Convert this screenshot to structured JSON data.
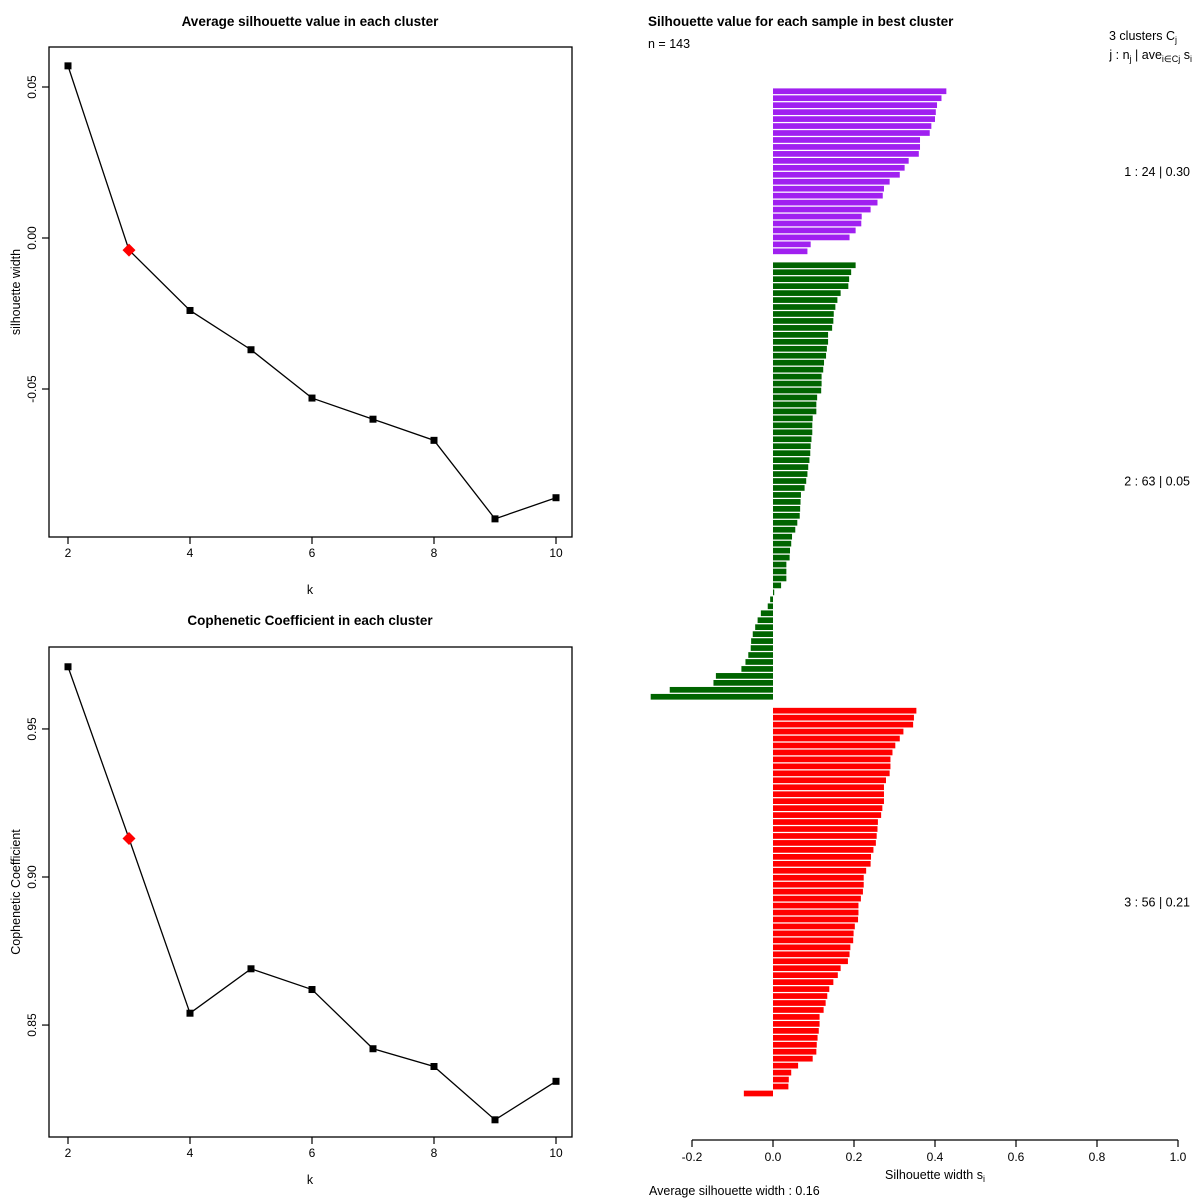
{
  "figure": {
    "background": "#ffffff",
    "series_color": "#000000",
    "marker_color": "#000000",
    "highlight_color": "#FF0000"
  },
  "chart_data": [
    {
      "type": "line",
      "title": "Average silhouette value in each cluster",
      "xlabel": "k",
      "ylabel": "silhouette width",
      "x": [
        2,
        3,
        4,
        5,
        6,
        7,
        8,
        9,
        10
      ],
      "y": [
        0.057,
        -0.004,
        -0.024,
        -0.037,
        -0.053,
        -0.06,
        -0.067,
        -0.093,
        -0.086
      ],
      "xticks": [
        2,
        4,
        6,
        8,
        10
      ],
      "yticks": [
        0.05,
        0.0,
        -0.05
      ],
      "ytick_labels": [
        "0.05",
        "0.00",
        "-0.05"
      ],
      "xlim": [
        1.7,
        10.3
      ],
      "ylim": [
        -0.097,
        0.062
      ],
      "grid": false,
      "highlight": {
        "x": 3,
        "y": -0.004,
        "marker": "diamond",
        "color": "#FF0000"
      }
    },
    {
      "type": "line",
      "title": "Cophenetic Coefficient in each cluster",
      "xlabel": "k",
      "ylabel": "Cophenetic Coefficient",
      "x": [
        2,
        3,
        4,
        5,
        6,
        7,
        8,
        9,
        10
      ],
      "y": [
        0.971,
        0.913,
        0.854,
        0.869,
        0.862,
        0.842,
        0.836,
        0.818,
        0.831
      ],
      "xticks": [
        2,
        4,
        6,
        8,
        10
      ],
      "yticks": [
        0.95,
        0.9,
        0.85
      ],
      "ytick_labels": [
        "0.95",
        "0.90",
        "0.85"
      ],
      "xlim": [
        1.7,
        10.3
      ],
      "ylim": [
        0.812,
        0.976
      ],
      "grid": false,
      "highlight": {
        "x": 3,
        "y": 0.913,
        "marker": "diamond",
        "color": "#FF0000"
      }
    },
    {
      "type": "bar",
      "orientation": "horizontal",
      "title": "Silhouette value for each sample in best cluster",
      "subtitle": "n = 143",
      "anno1": {
        "p1": "3  clusters  C",
        "s1": "j"
      },
      "anno2": {
        "p1": "j :  n",
        "s1": "j",
        "p2": " | ave",
        "s2": "i∈Cj",
        "p3": "  s",
        "s3": "i"
      },
      "xlabel_parts": {
        "main": "Silhouette width s",
        "sub": "i"
      },
      "footer": "Average silhouette width :  0.16",
      "n_total": 143,
      "average_silhouette_width": 0.16,
      "xticks": [
        -0.2,
        0.0,
        0.2,
        0.4,
        0.6,
        0.8,
        1.0
      ],
      "xtick_labels": [
        "-0.2",
        "0.0",
        "0.2",
        "0.4",
        "0.6",
        "0.8",
        "1.0"
      ],
      "xlim": [
        -0.32,
        1.0
      ],
      "clusters": [
        {
          "j": 1,
          "n": 24,
          "avg_width": 0.3,
          "label": "1 :  24  |  0.30",
          "color": "#A020F0",
          "values": [
            0.428,
            0.416,
            0.405,
            0.402,
            0.4,
            0.391,
            0.387,
            0.363,
            0.363,
            0.36,
            0.335,
            0.325,
            0.313,
            0.288,
            0.274,
            0.271,
            0.258,
            0.241,
            0.219,
            0.218,
            0.204,
            0.189,
            0.093,
            0.085
          ]
        },
        {
          "j": 2,
          "n": 63,
          "avg_width": 0.05,
          "label": "2 :  63  |  0.05",
          "color": "#006400",
          "values": [
            0.204,
            0.193,
            0.188,
            0.186,
            0.167,
            0.159,
            0.154,
            0.15,
            0.149,
            0.146,
            0.136,
            0.136,
            0.133,
            0.131,
            0.126,
            0.124,
            0.12,
            0.12,
            0.119,
            0.109,
            0.107,
            0.107,
            0.098,
            0.097,
            0.097,
            0.095,
            0.093,
            0.092,
            0.09,
            0.087,
            0.085,
            0.082,
            0.078,
            0.069,
            0.068,
            0.067,
            0.066,
            0.06,
            0.055,
            0.047,
            0.045,
            0.042,
            0.041,
            0.033,
            0.033,
            0.033,
            0.02,
            0.003,
            -0.007,
            -0.013,
            -0.03,
            -0.038,
            -0.044,
            -0.05,
            -0.054,
            -0.055,
            -0.061,
            -0.068,
            -0.078,
            -0.141,
            -0.147,
            -0.255,
            -0.302
          ]
        },
        {
          "j": 3,
          "n": 56,
          "avg_width": 0.21,
          "label": "3 :  56  |  0.21",
          "color": "#FF0000",
          "values": [
            0.354,
            0.348,
            0.346,
            0.322,
            0.313,
            0.302,
            0.295,
            0.29,
            0.29,
            0.288,
            0.279,
            0.274,
            0.274,
            0.274,
            0.27,
            0.267,
            0.259,
            0.258,
            0.256,
            0.254,
            0.248,
            0.242,
            0.241,
            0.23,
            0.224,
            0.224,
            0.222,
            0.217,
            0.211,
            0.211,
            0.21,
            0.202,
            0.199,
            0.198,
            0.191,
            0.189,
            0.185,
            0.167,
            0.16,
            0.149,
            0.139,
            0.134,
            0.13,
            0.125,
            0.115,
            0.115,
            0.113,
            0.11,
            0.108,
            0.107,
            0.098,
            0.062,
            0.045,
            0.039,
            0.038,
            -0.072
          ]
        }
      ]
    }
  ]
}
